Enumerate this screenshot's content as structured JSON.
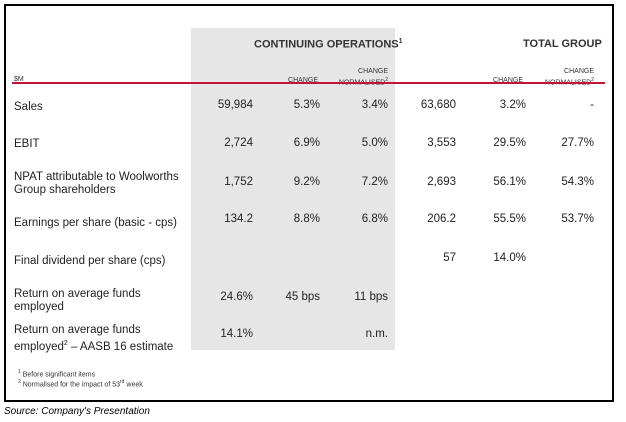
{
  "header": {
    "continuing": "CONTINUING OPERATIONS",
    "continuing_sup": "1",
    "total": "TOTAL GROUP",
    "unit": "$M",
    "change": "CHANGE",
    "normalised_line1": "CHANGE",
    "normalised_line2": "NORMALISED",
    "normalised_sup": "2"
  },
  "rows": [
    {
      "label": "Sales",
      "c1": "59,984",
      "c2": "5.3%",
      "c3": "3.4%",
      "c4": "63,680",
      "c5": "3.2%",
      "c6": "-"
    },
    {
      "label": "EBIT",
      "c1": "2,724",
      "c2": "6.9%",
      "c3": "5.0%",
      "c4": "3,553",
      "c5": "29.5%",
      "c6": "27.7%"
    },
    {
      "label": "NPAT attributable to Woolworths Group shareholders",
      "c1": "1,752",
      "c2": "9.2%",
      "c3": "7.2%",
      "c4": "2,693",
      "c5": "56.1%",
      "c6": "54.3%"
    },
    {
      "label": "Earnings per share (basic - cps)",
      "c1": "134.2",
      "c2": "8.8%",
      "c3": "6.8%",
      "c4": "206.2",
      "c5": "55.5%",
      "c6": "53.7%"
    },
    {
      "label": "Final dividend per share (cps)",
      "c1": "",
      "c2": "",
      "c3": "",
      "c4": "57",
      "c5": "14.0%",
      "c6": ""
    },
    {
      "label": "Return on average funds employed",
      "c1": "24.6%",
      "c2": "45 bps",
      "c3": "11 bps",
      "c4": "",
      "c5": "",
      "c6": ""
    },
    {
      "label_a": "Return on average funds employed",
      "label_sup": "2",
      "label_b": " – AASB 16 estimate",
      "c1": "14.1%",
      "c2": "",
      "c3": "n.m.",
      "c4": "",
      "c5": "",
      "c6": ""
    }
  ],
  "footnotes": {
    "f1_num": "1",
    "f1": " Before significant items",
    "f2_num": "2",
    "f2_a": " Normalised for the impact of 53",
    "f2_sup": "rd",
    "f2_b": " week"
  },
  "source": "Source: Company's Presentation"
}
